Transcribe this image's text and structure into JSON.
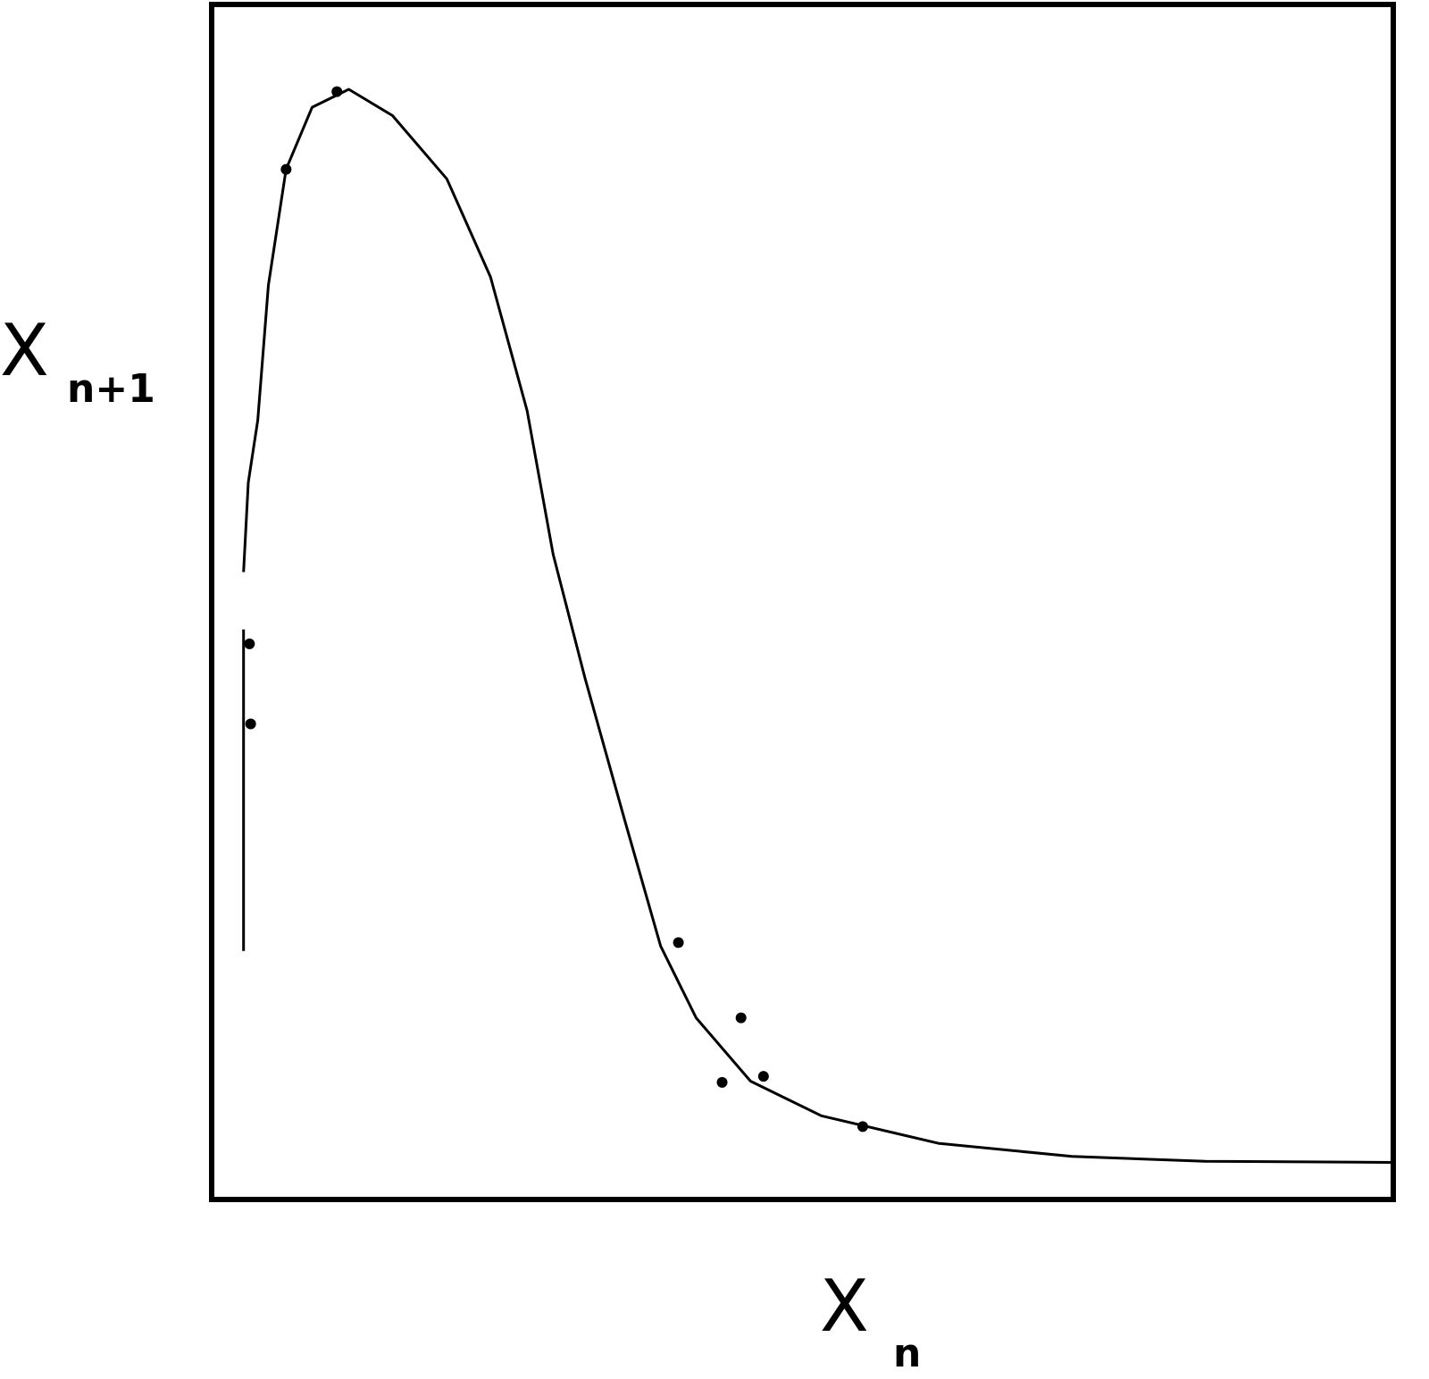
{
  "chart_data": {
    "type": "line",
    "x_label": {
      "main": "X",
      "sub": "n"
    },
    "y_label": {
      "main": "X",
      "sub": "n+1"
    },
    "xlim": [
      0,
      1
    ],
    "ylim": [
      0,
      1
    ],
    "color": "#000000",
    "series": [
      {
        "x": [
          0.027,
          0.031,
          0.039,
          0.048,
          0.063,
          0.085,
          0.116,
          0.153,
          0.199,
          0.236,
          0.267,
          0.289,
          0.316,
          0.35,
          0.38,
          0.41,
          0.456,
          0.516,
          0.615,
          0.728,
          0.841,
          0.998
        ],
        "values": [
          0.525,
          0.6,
          0.652,
          0.765,
          0.862,
          0.914,
          0.929,
          0.907,
          0.854,
          0.772,
          0.66,
          0.54,
          0.436,
          0.316,
          0.212,
          0.152,
          0.099,
          0.07,
          0.047,
          0.036,
          0.032,
          0.031
        ]
      },
      {
        "x": [
          0.027,
          0.027
        ],
        "values": [
          0.477,
          0.208
        ]
      }
    ],
    "points": {
      "x": [
        0.395,
        0.448,
        0.467,
        0.432,
        0.063,
        0.106,
        0.032,
        0.033,
        0.551
      ],
      "values": [
        0.215,
        0.152,
        0.103,
        0.098,
        0.862,
        0.927,
        0.465,
        0.398,
        0.061
      ]
    }
  }
}
